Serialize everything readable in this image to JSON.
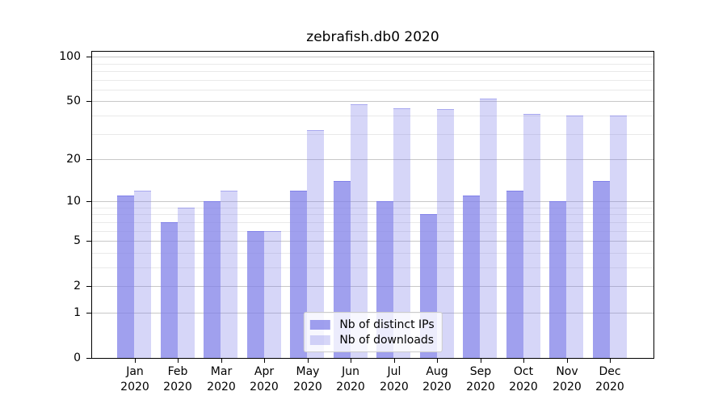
{
  "figure": {
    "title": "zebrafish.db0 2020"
  },
  "chart_data": {
    "type": "bar",
    "title": "zebrafish.db0 2020",
    "categories": [
      "Jan 2020",
      "Feb 2020",
      "Mar 2020",
      "Apr 2020",
      "May 2020",
      "Jun 2020",
      "Jul 2020",
      "Aug 2020",
      "Sep 2020",
      "Oct 2020",
      "Nov 2020",
      "Dec 2020"
    ],
    "series": [
      {
        "name": "Nb of distinct IPs",
        "color": "#8080e8",
        "alpha": 0.75,
        "values": [
          11,
          7,
          10,
          6,
          12,
          14,
          10,
          8,
          11,
          12,
          10,
          14
        ]
      },
      {
        "name": "Nb of downloads",
        "color": "#8080e8",
        "alpha": 0.32,
        "values": [
          12,
          9,
          12,
          6,
          32,
          48,
          45,
          44,
          52,
          41,
          40,
          40
        ]
      }
    ],
    "xlabel": "",
    "ylabel": "",
    "y_axis": {
      "scale": "log10(1+y)",
      "ticks": [
        0,
        1,
        2,
        5,
        10,
        20,
        50,
        100
      ],
      "minor_ticks": [
        3,
        4,
        6,
        7,
        8,
        9,
        30,
        40,
        60,
        70,
        80,
        90
      ],
      "ylim": [
        0,
        108
      ]
    },
    "grid": true,
    "legend_position": "lower center"
  }
}
